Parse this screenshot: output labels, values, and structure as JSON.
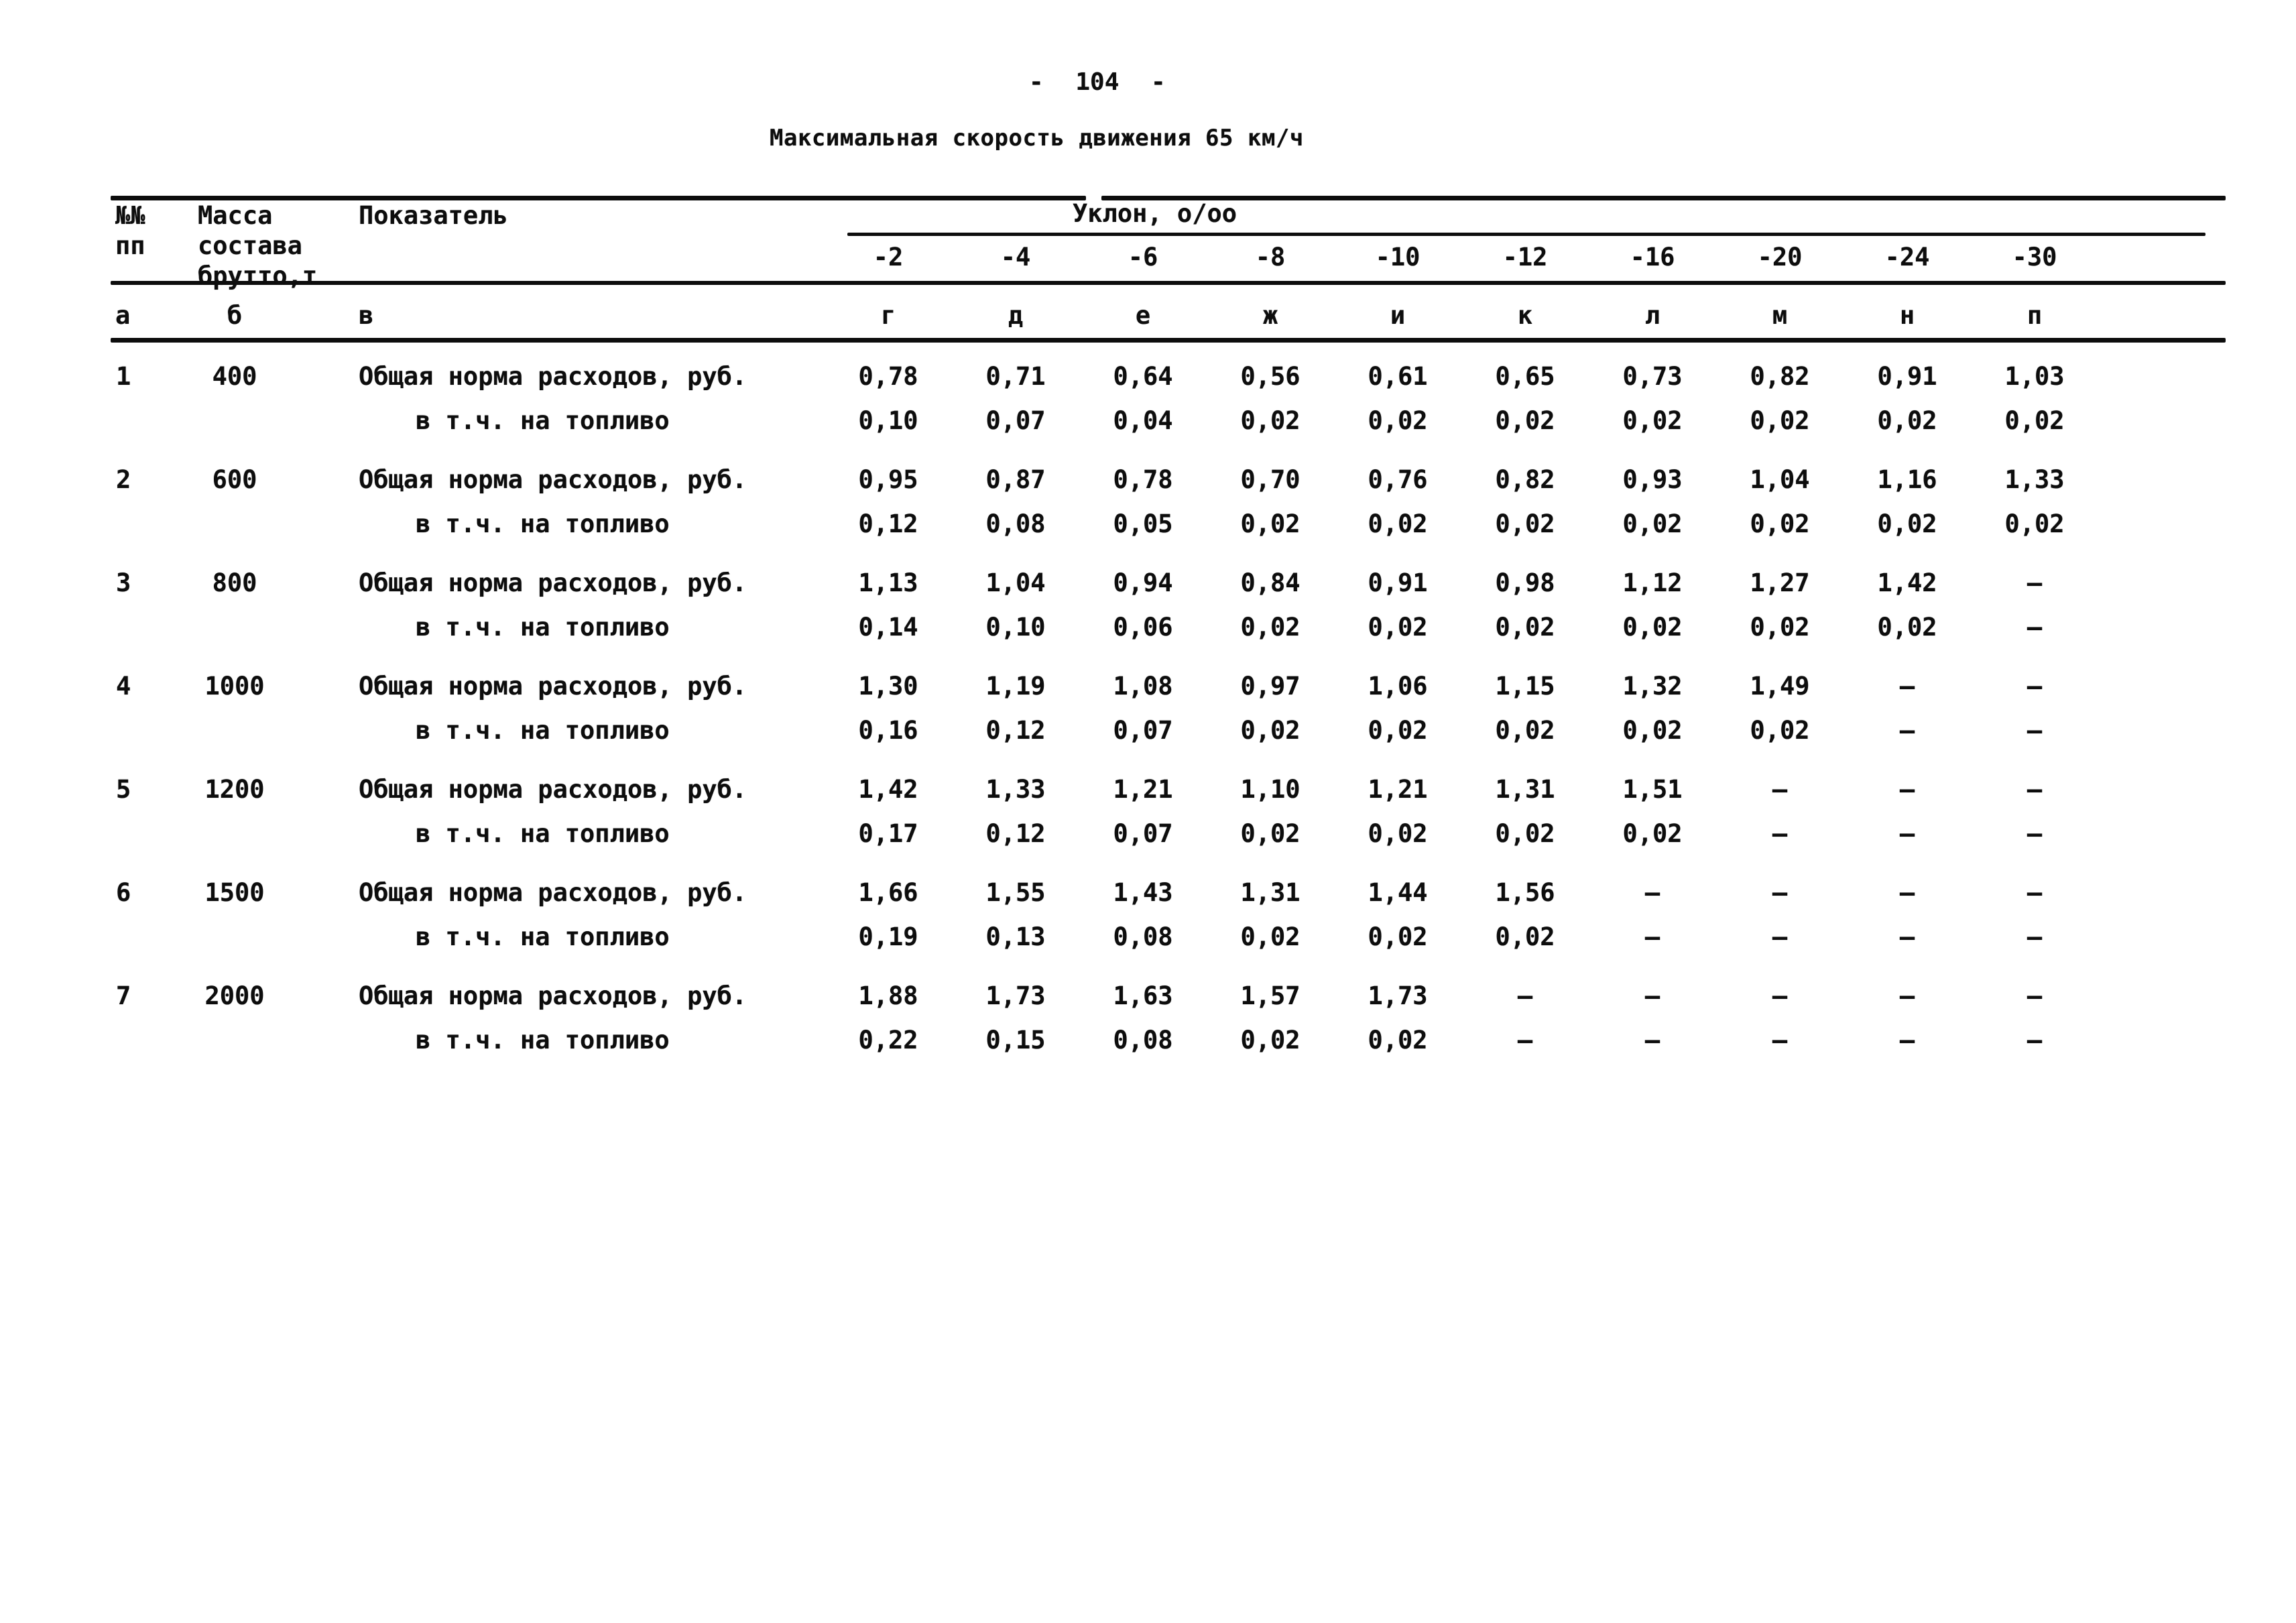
{
  "colors": {
    "ink": "#0d0d0d",
    "paper": "#ffffff"
  },
  "page": {
    "number": "- 104 -",
    "title": "Максимальная скорость движения 65 км/ч"
  },
  "table": {
    "header": {
      "col_num": "№№\nпп",
      "col_mass": "Масса\nсостава\nбрутто,т",
      "col_indicator": "Показатель",
      "slope_group": "Уклон, о/оо",
      "slopes": [
        "-2",
        "-4",
        "-6",
        "-8",
        "-10",
        "-12",
        "-16",
        "-20",
        "-24",
        "-30"
      ],
      "letters": [
        "а",
        "б",
        "в",
        "г",
        "д",
        "е",
        "ж",
        "и",
        "к",
        "л",
        "м",
        "н",
        "п"
      ]
    },
    "row_labels": {
      "norm": "Общая норма расходов, руб.",
      "fuel": "в т.ч. на топливо"
    },
    "rows": [
      {
        "num": "1",
        "mass": "400",
        "norm": [
          "0,78",
          "0,71",
          "0,64",
          "0,56",
          "0,61",
          "0,65",
          "0,73",
          "0,82",
          "0,91",
          "1,03"
        ],
        "fuel": [
          "0,10",
          "0,07",
          "0,04",
          "0,02",
          "0,02",
          "0,02",
          "0,02",
          "0,02",
          "0,02",
          "0,02"
        ]
      },
      {
        "num": "2",
        "mass": "600",
        "norm": [
          "0,95",
          "0,87",
          "0,78",
          "0,70",
          "0,76",
          "0,82",
          "0,93",
          "1,04",
          "1,16",
          "1,33"
        ],
        "fuel": [
          "0,12",
          "0,08",
          "0,05",
          "0,02",
          "0,02",
          "0,02",
          "0,02",
          "0,02",
          "0,02",
          "0,02"
        ]
      },
      {
        "num": "3",
        "mass": "800",
        "norm": [
          "1,13",
          "1,04",
          "0,94",
          "0,84",
          "0,91",
          "0,98",
          "1,12",
          "1,27",
          "1,42",
          "–"
        ],
        "fuel": [
          "0,14",
          "0,10",
          "0,06",
          "0,02",
          "0,02",
          "0,02",
          "0,02",
          "0,02",
          "0,02",
          "–"
        ]
      },
      {
        "num": "4",
        "mass": "1000",
        "norm": [
          "1,30",
          "1,19",
          "1,08",
          "0,97",
          "1,06",
          "1,15",
          "1,32",
          "1,49",
          "–",
          "–"
        ],
        "fuel": [
          "0,16",
          "0,12",
          "0,07",
          "0,02",
          "0,02",
          "0,02",
          "0,02",
          "0,02",
          "–",
          "–"
        ]
      },
      {
        "num": "5",
        "mass": "1200",
        "norm": [
          "1,42",
          "1,33",
          "1,21",
          "1,10",
          "1,21",
          "1,31",
          "1,51",
          "–",
          "–",
          "–"
        ],
        "fuel": [
          "0,17",
          "0,12",
          "0,07",
          "0,02",
          "0,02",
          "0,02",
          "0,02",
          "–",
          "–",
          "–"
        ]
      },
      {
        "num": "6",
        "mass": "1500",
        "norm": [
          "1,66",
          "1,55",
          "1,43",
          "1,31",
          "1,44",
          "1,56",
          "–",
          "–",
          "–",
          "–"
        ],
        "fuel": [
          "0,19",
          "0,13",
          "0,08",
          "0,02",
          "0,02",
          "0,02",
          "–",
          "–",
          "–",
          "–"
        ]
      },
      {
        "num": "7",
        "mass": "2000",
        "norm": [
          "1,88",
          "1,73",
          "1,63",
          "1,57",
          "1,73",
          "–",
          "–",
          "–",
          "–",
          "–"
        ],
        "fuel": [
          "0,22",
          "0,15",
          "0,08",
          "0,02",
          "0,02",
          "–",
          "–",
          "–",
          "–",
          "–"
        ]
      }
    ]
  }
}
